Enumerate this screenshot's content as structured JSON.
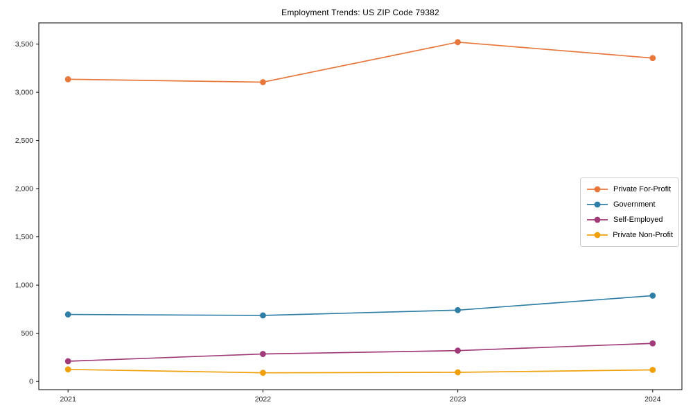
{
  "page": {
    "background": "#ffffff"
  },
  "chart_data": {
    "type": "line",
    "title": "Employment Trends: US ZIP Code 79382",
    "x": [
      2021,
      2022,
      2023,
      2024
    ],
    "x_tick_labels": [
      "2021",
      "2022",
      "2023",
      "2024"
    ],
    "series": [
      {
        "name": "Private For-Profit",
        "color": "#E8773C",
        "values": [
          3135,
          3105,
          3520,
          3355
        ]
      },
      {
        "name": "Government",
        "color": "#2E7EA6",
        "values": [
          695,
          685,
          740,
          890
        ]
      },
      {
        "name": "Self-Employed",
        "color": "#A03A78",
        "values": [
          210,
          285,
          320,
          395
        ]
      },
      {
        "name": "Private Non-Profit",
        "color": "#EFA00B",
        "values": [
          125,
          90,
          95,
          120
        ]
      }
    ],
    "y_ticks": [
      0,
      500,
      1000,
      1500,
      2000,
      2500,
      3000,
      3500
    ],
    "y_tick_labels": [
      "0",
      "500",
      "1,000",
      "1,500",
      "2,000",
      "2,500",
      "3,000",
      "3,500"
    ],
    "ylim": [
      -85,
      3720
    ],
    "xlim": [
      2020.85,
      2024.15
    ],
    "xlabel": "",
    "ylabel": "",
    "grid": false,
    "legend_position": "right-middle",
    "marker": "circle"
  }
}
